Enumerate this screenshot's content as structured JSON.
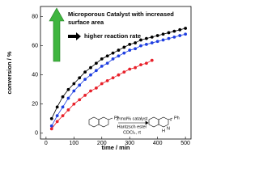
{
  "chart_data": {
    "type": "line",
    "x_label": "time / min",
    "y_label": "conversion / %",
    "x": [
      20,
      40,
      60,
      80,
      100,
      120,
      140,
      160,
      180,
      200,
      220,
      240,
      260,
      280,
      300,
      320,
      340,
      360,
      380,
      400,
      420,
      440,
      460,
      480,
      500
    ],
    "series": [
      {
        "color": "#000000",
        "values": [
          10,
          18,
          25,
          30,
          34,
          38,
          42,
          45,
          48,
          51,
          53,
          55,
          57,
          59,
          61,
          62,
          64,
          65,
          66,
          67,
          68,
          69,
          70,
          71,
          72
        ]
      },
      {
        "color": "#1f3fe0",
        "values": [
          5,
          12,
          18,
          24,
          29,
          33,
          37,
          40,
          43,
          46,
          48,
          51,
          53,
          55,
          57,
          58,
          60,
          61,
          62,
          63,
          64,
          65,
          66,
          67,
          68
        ]
      },
      {
        "color": "#e8202a",
        "values": [
          3,
          8,
          12,
          16,
          20,
          23,
          26,
          29,
          31,
          34,
          36,
          38,
          40,
          42,
          44,
          45,
          47,
          48,
          50,
          null,
          null,
          null,
          null,
          null,
          null
        ]
      }
    ],
    "xlim": [
      -20,
      520
    ],
    "xticks": [
      0,
      100,
      200,
      300,
      400,
      500
    ],
    "ylim": [
      -4,
      87
    ],
    "yticks": [
      0,
      20,
      40,
      60,
      80
    ],
    "annotations": [
      "Microporous Catalyst with increased",
      "surface area",
      "higher reaction rate"
    ],
    "scheme": {
      "reactant_substituent": "Ph",
      "conditions": [
        "2 mol% catalyst",
        "Hantzsch ester",
        "CDCl₃, rt"
      ],
      "product_n": "N",
      "product_h": "H",
      "product_star": "*",
      "product_substituent": "Ph"
    }
  }
}
